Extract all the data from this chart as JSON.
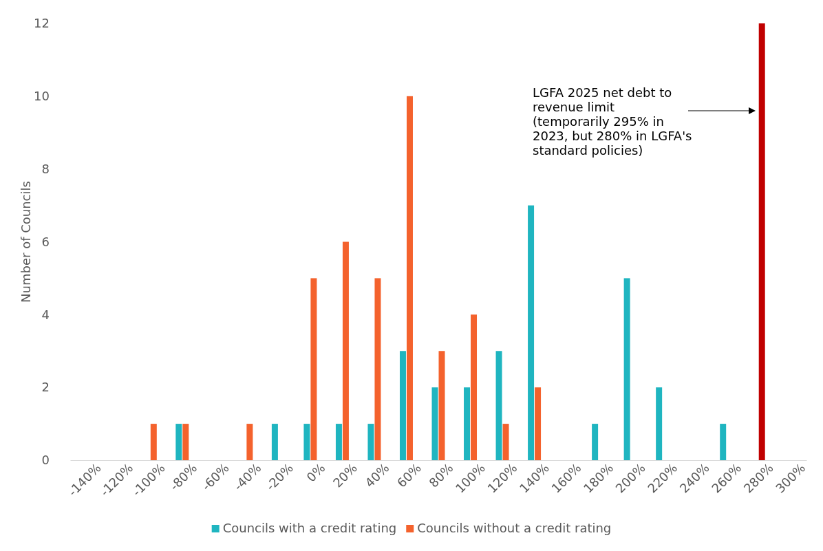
{
  "chart_data": {
    "type": "bar",
    "ylabel": "Number of Councils",
    "categories": [
      "-140%",
      "-120%",
      "-100%",
      "-80%",
      "-60%",
      "-40%",
      "-20%",
      "0%",
      "20%",
      "40%",
      "60%",
      "80%",
      "100%",
      "120%",
      "140%",
      "160%",
      "180%",
      "200%",
      "220%",
      "240%",
      "260%",
      "280%",
      "300%"
    ],
    "series": [
      {
        "name": "Councils with a credit rating",
        "color": "#1fb5c0",
        "values": [
          null,
          null,
          null,
          1,
          null,
          null,
          1,
          1,
          1,
          1,
          3,
          2,
          2,
          3,
          7,
          null,
          1,
          5,
          2,
          null,
          1,
          null,
          null
        ]
      },
      {
        "name": "Councils without a credit rating",
        "color": "#f4622d",
        "values": [
          null,
          null,
          1,
          1,
          null,
          1,
          null,
          5,
          6,
          5,
          10,
          3,
          4,
          1,
          2,
          null,
          null,
          null,
          null,
          null,
          null,
          null,
          null
        ]
      }
    ],
    "ylim": [
      0,
      12
    ],
    "yticks": [
      0,
      2,
      4,
      6,
      8,
      10,
      12
    ],
    "grid": false,
    "legend": "bottom",
    "ref_lines": [
      {
        "axis": "x",
        "value": "280%",
        "color": "#c00000"
      }
    ],
    "annotations": [
      "LGFA 2025 net debt to revenue limit (temporarily 295% in 2023, but 280% in LGFA's standard policies)"
    ]
  }
}
